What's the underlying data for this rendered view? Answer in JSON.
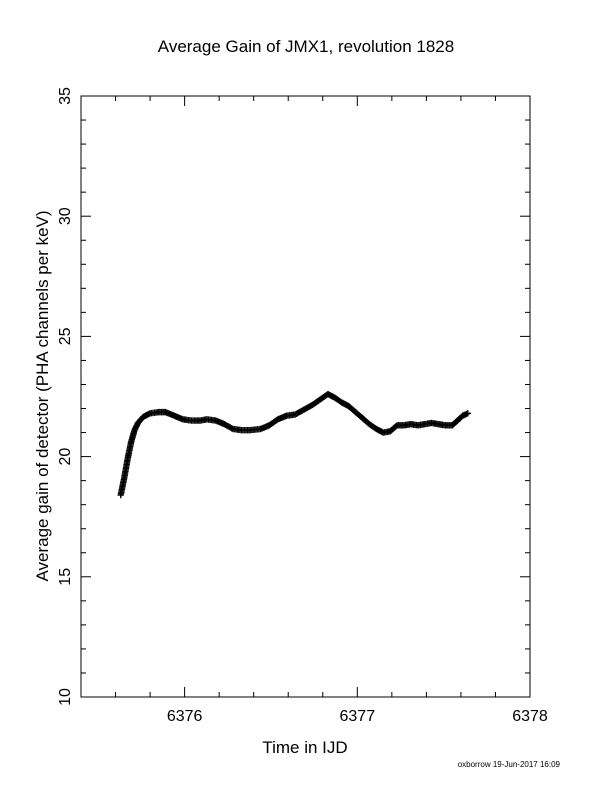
{
  "chart_data": {
    "type": "scatter",
    "title": "Average Gain of JMX1, revolution 1828",
    "xlabel": "Time in IJD",
    "ylabel": "Average gain of detector (PHA channels per keV)",
    "xlim": [
      6375.4,
      6378
    ],
    "ylim": [
      10,
      35
    ],
    "xticks": [
      6376,
      6377,
      6378
    ],
    "xtick_labels": [
      "6376",
      "6377",
      "6378"
    ],
    "yticks": [
      10,
      15,
      20,
      25,
      30,
      35
    ],
    "ytick_labels": [
      "10",
      "15",
      "20",
      "25",
      "30",
      "35"
    ],
    "x_minor_step": 0.2,
    "y_minor_step": 1,
    "grid": false,
    "legend": "none",
    "marker": "plus",
    "color": "#000000",
    "series": [
      {
        "x": [
          6375.63,
          6375.65,
          6375.67,
          6375.69,
          6375.71,
          6375.73,
          6375.76,
          6375.8,
          6375.85,
          6375.89,
          6375.94,
          6375.99,
          6376.04,
          6376.09,
          6376.13,
          6376.18,
          6376.23,
          6376.28,
          6376.33,
          6376.38,
          6376.44,
          6376.49,
          6376.54,
          6376.59,
          6376.64,
          6376.69,
          6376.74,
          6376.79,
          6376.83,
          6376.87,
          6376.91,
          6376.95,
          6376.99,
          6377.03,
          6377.07,
          6377.11,
          6377.15,
          6377.19,
          6377.23,
          6377.27,
          6377.31,
          6377.35,
          6377.39,
          6377.43,
          6377.47,
          6377.51,
          6377.55,
          6377.58,
          6377.61,
          6377.64
        ],
        "y": [
          18.4,
          19.1,
          19.9,
          20.6,
          21.1,
          21.4,
          21.65,
          21.8,
          21.85,
          21.85,
          21.7,
          21.55,
          21.5,
          21.5,
          21.55,
          21.5,
          21.35,
          21.15,
          21.1,
          21.1,
          21.15,
          21.3,
          21.55,
          21.7,
          21.75,
          21.95,
          22.15,
          22.4,
          22.6,
          22.45,
          22.25,
          22.1,
          21.85,
          21.6,
          21.35,
          21.15,
          21.0,
          21.05,
          21.3,
          21.3,
          21.35,
          21.3,
          21.35,
          21.4,
          21.35,
          21.3,
          21.3,
          21.5,
          21.7,
          21.8
        ]
      }
    ]
  },
  "footer": {
    "credit": "oxborrow 19-Jun-2017 16:09"
  }
}
